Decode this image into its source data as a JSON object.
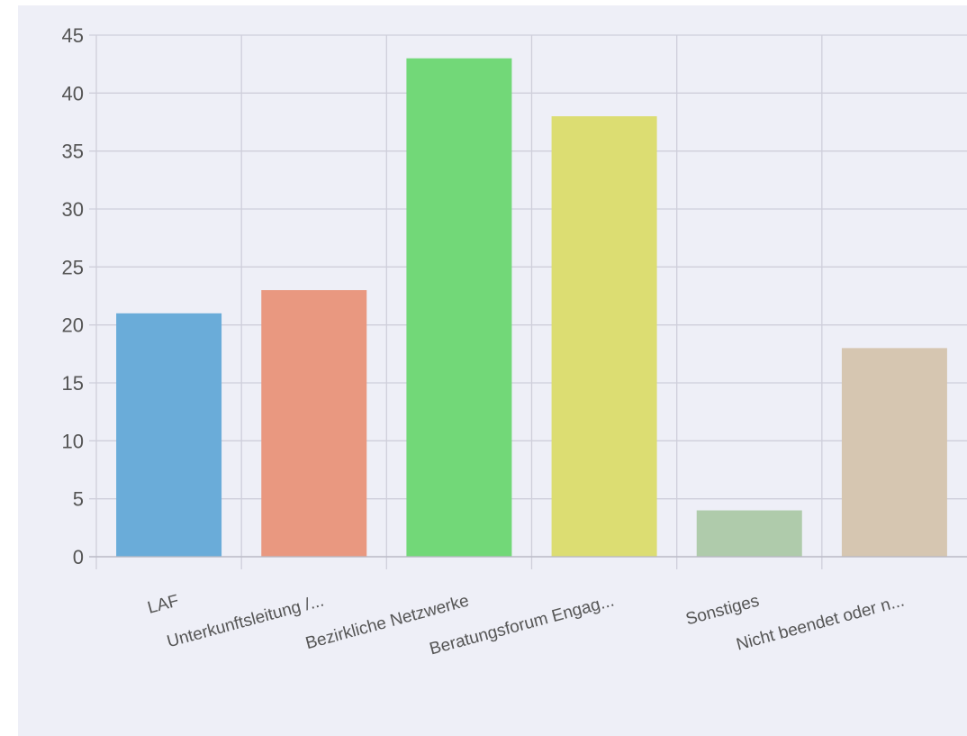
{
  "chart_data": {
    "type": "bar",
    "categories": [
      "LAF",
      "Unterkunftsleitung /...",
      "Bezirkliche Netzwerke",
      "Beratungsforum Engag...",
      "Sonstiges",
      "Nicht beendet oder n..."
    ],
    "values": [
      21,
      23,
      43,
      38,
      4,
      18
    ],
    "colors": [
      "#6aacd9",
      "#e99880",
      "#72d878",
      "#dcdd72",
      "#afcbab",
      "#d6c6b1"
    ],
    "ylim": [
      0,
      45
    ],
    "yticks": [
      0,
      5,
      10,
      15,
      20,
      25,
      30,
      35,
      40,
      45
    ],
    "grid": true,
    "legend": "none",
    "title": "",
    "xlabel": "",
    "ylabel": ""
  }
}
